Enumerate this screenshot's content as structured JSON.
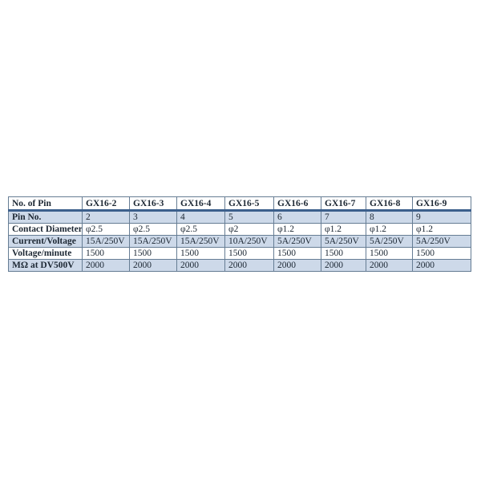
{
  "style": {
    "background_color": "#ffffff",
    "row_alt_color": "#cdd9e9",
    "border_color": "#667d94",
    "header_rule_color": "#3c5f8c",
    "text_color": "#1c2733"
  },
  "chart_data": {
    "type": "table",
    "columns": [
      "No. of Pin",
      "GX16-2",
      "GX16-3",
      "GX16-4",
      "GX16-5",
      "GX16-6",
      "GX16-7",
      "GX16-8",
      "GX16-9"
    ],
    "rows": [
      {
        "label": "Pin No.",
        "values": [
          "2",
          "3",
          "4",
          "5",
          "6",
          "7",
          "8",
          "9"
        ]
      },
      {
        "label": "Contact Diameter",
        "values": [
          "φ2.5",
          "φ2.5",
          "φ2.5",
          "φ2",
          "φ1.2",
          "φ1.2",
          "φ1.2",
          "φ1.2"
        ]
      },
      {
        "label": "Current/Voltage",
        "values": [
          "15A/250V",
          "15A/250V",
          "15A/250V",
          "10A/250V",
          "5A/250V",
          "5A/250V",
          "5A/250V",
          "5A/250V"
        ]
      },
      {
        "label": "Voltage/minute",
        "values": [
          "1500",
          "1500",
          "1500",
          "1500",
          "1500",
          "1500",
          "1500",
          "1500"
        ]
      },
      {
        "label": "MΩ at DV500V",
        "values": [
          "2000",
          "2000",
          "2000",
          "2000",
          "2000",
          "2000",
          "2000",
          "2000"
        ]
      }
    ]
  }
}
